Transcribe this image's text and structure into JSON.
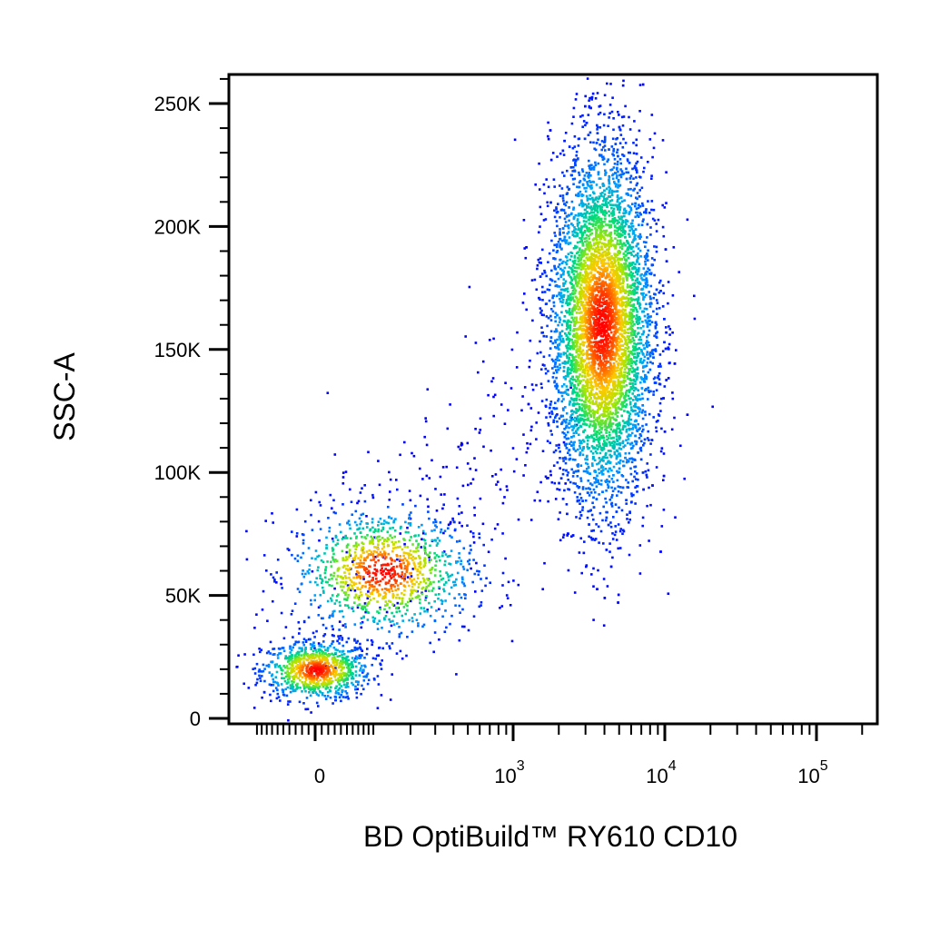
{
  "chart_data": {
    "type": "scatter",
    "title": "",
    "xlabel": "BD OptiBuild™ RY610 CD10",
    "ylabel": "SSC-A",
    "x_scale": "biexponential",
    "xlim": [
      -200,
      200000
    ],
    "ylim": [
      0,
      262144
    ],
    "color_mode": "density (blue → green → yellow → red)",
    "grid": false,
    "legend": "none",
    "x_ticks": [
      {
        "value": 0,
        "base": "0",
        "exp": ""
      },
      {
        "value": 1000,
        "base": "10",
        "exp": "3"
      },
      {
        "value": 10000,
        "base": "10",
        "exp": "4"
      },
      {
        "value": 100000,
        "base": "10",
        "exp": "5"
      }
    ],
    "y_ticks": [
      {
        "value": 0,
        "label": "0"
      },
      {
        "value": 50000,
        "label": "50K"
      },
      {
        "value": 100000,
        "label": "100K"
      },
      {
        "value": 150000,
        "label": "150K"
      },
      {
        "value": 200000,
        "label": "200K"
      },
      {
        "value": 250000,
        "label": "250K"
      }
    ],
    "populations": [
      {
        "center_x": 0,
        "center_y": 20000,
        "spread_x_decades": 0.18,
        "spread_y": 6000,
        "events": 900
      },
      {
        "center_x": 120,
        "center_y": 60000,
        "spread_x_decades": 0.3,
        "spread_y": 13000,
        "events": 1100
      },
      {
        "center_x": 3800,
        "center_y": 160000,
        "spread_x_decades": 0.17,
        "spread_y": 36000,
        "events": 6200
      }
    ]
  }
}
